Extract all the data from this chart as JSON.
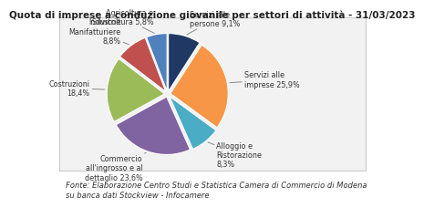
{
  "title": "Quota di imprese a conduzione giovanile per settori di attività - 31/03/2023",
  "footer": "Fonte: Elaborazione Centro Studi e Statistica Camera di Commercio di Modena\nsu banca dati Stockview - Infocamere",
  "slices": [
    {
      "label": "Agricoltura e\nSilvicoltura 5,8%",
      "value": 5.8,
      "color": "#4f81bd",
      "explode": 0.05
    },
    {
      "label": "Industrie\nManifatturiere\n8,8%",
      "value": 8.8,
      "color": "#c0504d",
      "explode": 0.05
    },
    {
      "label": "Costruzioni\n18,4%",
      "value": 18.4,
      "color": "#9bbb59",
      "explode": 0.05
    },
    {
      "label": "Commercio\nall'ingrosso e al\ndettaglio 23,6%",
      "value": 23.6,
      "color": "#8064a2",
      "explode": 0.05
    },
    {
      "label": "Alloggio e\nRistorazione\n8,3%",
      "value": 8.3,
      "color": "#4bacc6",
      "explode": 0.05
    },
    {
      "label": "Servizi alle\nimprese 25,9%",
      "value": 25.9,
      "color": "#f79646",
      "explode": 0.05
    },
    {
      "label": "Servizi alle\npersone 9,1%",
      "value": 9.1,
      "color": "#1f3864",
      "explode": 0.05
    }
  ],
  "background_color": "#ffffff",
  "box_color": "#f2f2f2",
  "title_fontsize": 7.5,
  "footer_fontsize": 6.0,
  "label_fontsize": 5.8
}
